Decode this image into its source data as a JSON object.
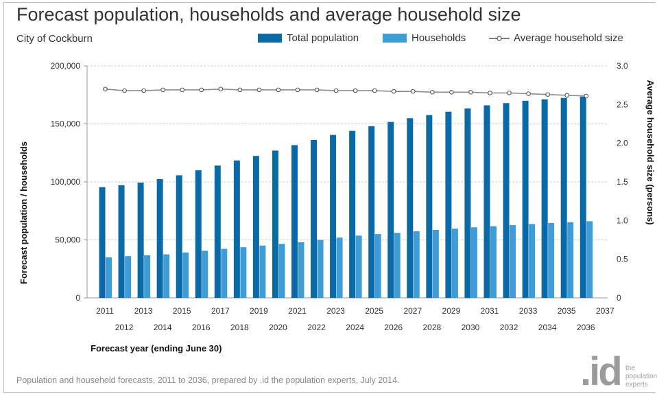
{
  "page": {
    "title": "Forecast population, households and average household size",
    "subtitle": "City of Cockburn",
    "footer": "Population and household forecasts, 2011 to 2036, prepared by .id the population experts, July 2014.",
    "logo_mark": ".id",
    "logo_tagline": "the population experts"
  },
  "legend": {
    "total_population": "Total population",
    "households": "Households",
    "avg_household_size": "Average household size"
  },
  "colors": {
    "total_population": "#0a6aa8",
    "households": "#3e9dd6",
    "avg_line": "#8c8c8c",
    "marker_fill": "#ffffff",
    "grid": "#cfcfcf"
  },
  "chart_data": {
    "type": "bar",
    "title": "Forecast population, households and average household size",
    "subtitle": "City of Cockburn",
    "xlabel": "Forecast year (ending June 30)",
    "ylabel": "Forecast population / households",
    "y2label": "Average household size (persons)",
    "ylim": [
      0,
      200000
    ],
    "y_ticks": [
      0,
      50000,
      100000,
      150000,
      200000
    ],
    "y_tick_labels": [
      "0",
      "50,000",
      "100,000",
      "150,000",
      "200,000"
    ],
    "y2lim": [
      0,
      3.0
    ],
    "y2_ticks": [
      0,
      0.5,
      1.0,
      1.5,
      2.0,
      2.5,
      3.0
    ],
    "y2_tick_labels": [
      "0",
      "0.5",
      "1.0",
      "1.5",
      "2.0",
      "2.5",
      "3.0"
    ],
    "categories": [
      "2011",
      "2012",
      "2013",
      "2014",
      "2015",
      "2016",
      "2017",
      "2018",
      "2019",
      "2020",
      "2021",
      "2022",
      "2023",
      "2024",
      "2025",
      "2026",
      "2027",
      "2028",
      "2029",
      "2030",
      "2031",
      "2032",
      "2033",
      "2034",
      "2035",
      "2036"
    ],
    "x_tick_labels_upper": [
      "2011",
      "2013",
      "2015",
      "2017",
      "2019",
      "2021",
      "2023",
      "2025",
      "2027",
      "2029",
      "2031",
      "2033",
      "2035",
      "2037"
    ],
    "x_tick_labels_lower": [
      "2012",
      "2014",
      "2016",
      "2018",
      "2020",
      "2022",
      "2024",
      "2026",
      "2028",
      "2030",
      "2032",
      "2034",
      "2036"
    ],
    "grid": true,
    "legend_position": "top-right",
    "series": [
      {
        "name": "Total population",
        "type": "bar",
        "axis": "left",
        "values": [
          95500,
          97200,
          99400,
          102400,
          105700,
          110000,
          114100,
          118500,
          122400,
          127000,
          131700,
          136100,
          140500,
          144000,
          148000,
          151700,
          154900,
          157600,
          160500,
          163300,
          166000,
          167900,
          169900,
          171200,
          172400,
          173500
        ]
      },
      {
        "name": "Households",
        "type": "bar",
        "axis": "left",
        "values": [
          35000,
          36000,
          36800,
          37500,
          39200,
          40600,
          42300,
          43700,
          45100,
          46600,
          48000,
          50000,
          52000,
          53700,
          55000,
          56100,
          57400,
          58600,
          59700,
          60800,
          61800,
          62700,
          63700,
          64600,
          65300,
          66100
        ]
      },
      {
        "name": "Average household size",
        "type": "line",
        "axis": "right",
        "values": [
          2.7,
          2.68,
          2.68,
          2.69,
          2.69,
          2.69,
          2.7,
          2.69,
          2.69,
          2.69,
          2.69,
          2.69,
          2.68,
          2.68,
          2.68,
          2.67,
          2.67,
          2.66,
          2.66,
          2.66,
          2.65,
          2.65,
          2.64,
          2.63,
          2.62,
          2.61
        ]
      }
    ]
  }
}
